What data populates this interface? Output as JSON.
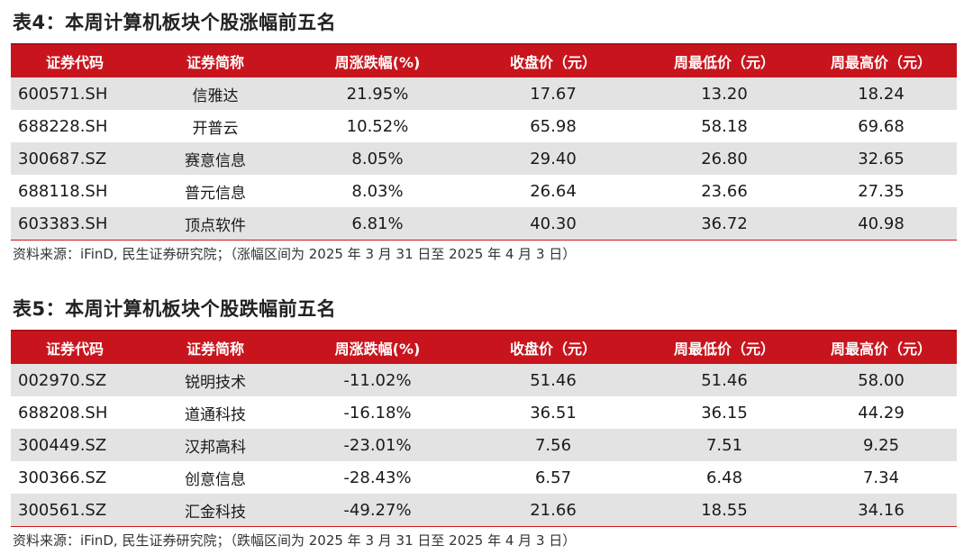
{
  "table1": {
    "title": "表4：本周计算机板块个股涨幅前五名",
    "headers": [
      "证券代码",
      "证券简称",
      "周涨跌幅(%)",
      "收盘价（元）",
      "周最低价（元）",
      "周最高价（元）"
    ],
    "rows": [
      {
        "code": "600571.SH",
        "name": "信雅达",
        "change": "21.95%",
        "close": "17.67",
        "low": "13.20",
        "high": "18.24"
      },
      {
        "code": "688228.SH",
        "name": "开普云",
        "change": "10.52%",
        "close": "65.98",
        "low": "58.18",
        "high": "69.68"
      },
      {
        "code": "300687.SZ",
        "name": "赛意信息",
        "change": "8.05%",
        "close": "29.40",
        "low": "26.80",
        "high": "32.65"
      },
      {
        "code": "688118.SH",
        "name": "普元信息",
        "change": "8.03%",
        "close": "26.64",
        "low": "23.66",
        "high": "27.35"
      },
      {
        "code": "603383.SH",
        "name": "顶点软件",
        "change": "6.81%",
        "close": "40.30",
        "low": "36.72",
        "high": "40.98"
      }
    ],
    "source": "资料来源：iFinD, 民生证券研究院；（涨幅区间为 2025 年 3 月 31 日至 2025 年 4 月 3 日）"
  },
  "table2": {
    "title": "表5：本周计算机板块个股跌幅前五名",
    "headers": [
      "证券代码",
      "证券简称",
      "周涨跌幅(%)",
      "收盘价（元）",
      "周最低价（元）",
      "周最高价（元）"
    ],
    "rows": [
      {
        "code": "002970.SZ",
        "name": "锐明技术",
        "change": "-11.02%",
        "close": "51.46",
        "low": "51.46",
        "high": "58.00"
      },
      {
        "code": "688208.SH",
        "name": "道通科技",
        "change": "-16.18%",
        "close": "36.51",
        "low": "36.15",
        "high": "44.29"
      },
      {
        "code": "300449.SZ",
        "name": "汉邦高科",
        "change": "-23.01%",
        "close": "7.56",
        "low": "7.51",
        "high": "9.25"
      },
      {
        "code": "300366.SZ",
        "name": "创意信息",
        "change": "-28.43%",
        "close": "6.57",
        "low": "6.48",
        "high": "7.34"
      },
      {
        "code": "300561.SZ",
        "name": "汇金科技",
        "change": "-49.27%",
        "close": "21.66",
        "low": "18.55",
        "high": "34.16"
      }
    ],
    "source": "资料来源：iFinD, 民生证券研究院；（跌幅区间为 2025 年 3 月 31 日至 2025 年 4 月 3 日）"
  },
  "colors": {
    "header_bg": "#c8151d",
    "stripe_bg": "#e3e3e3"
  }
}
